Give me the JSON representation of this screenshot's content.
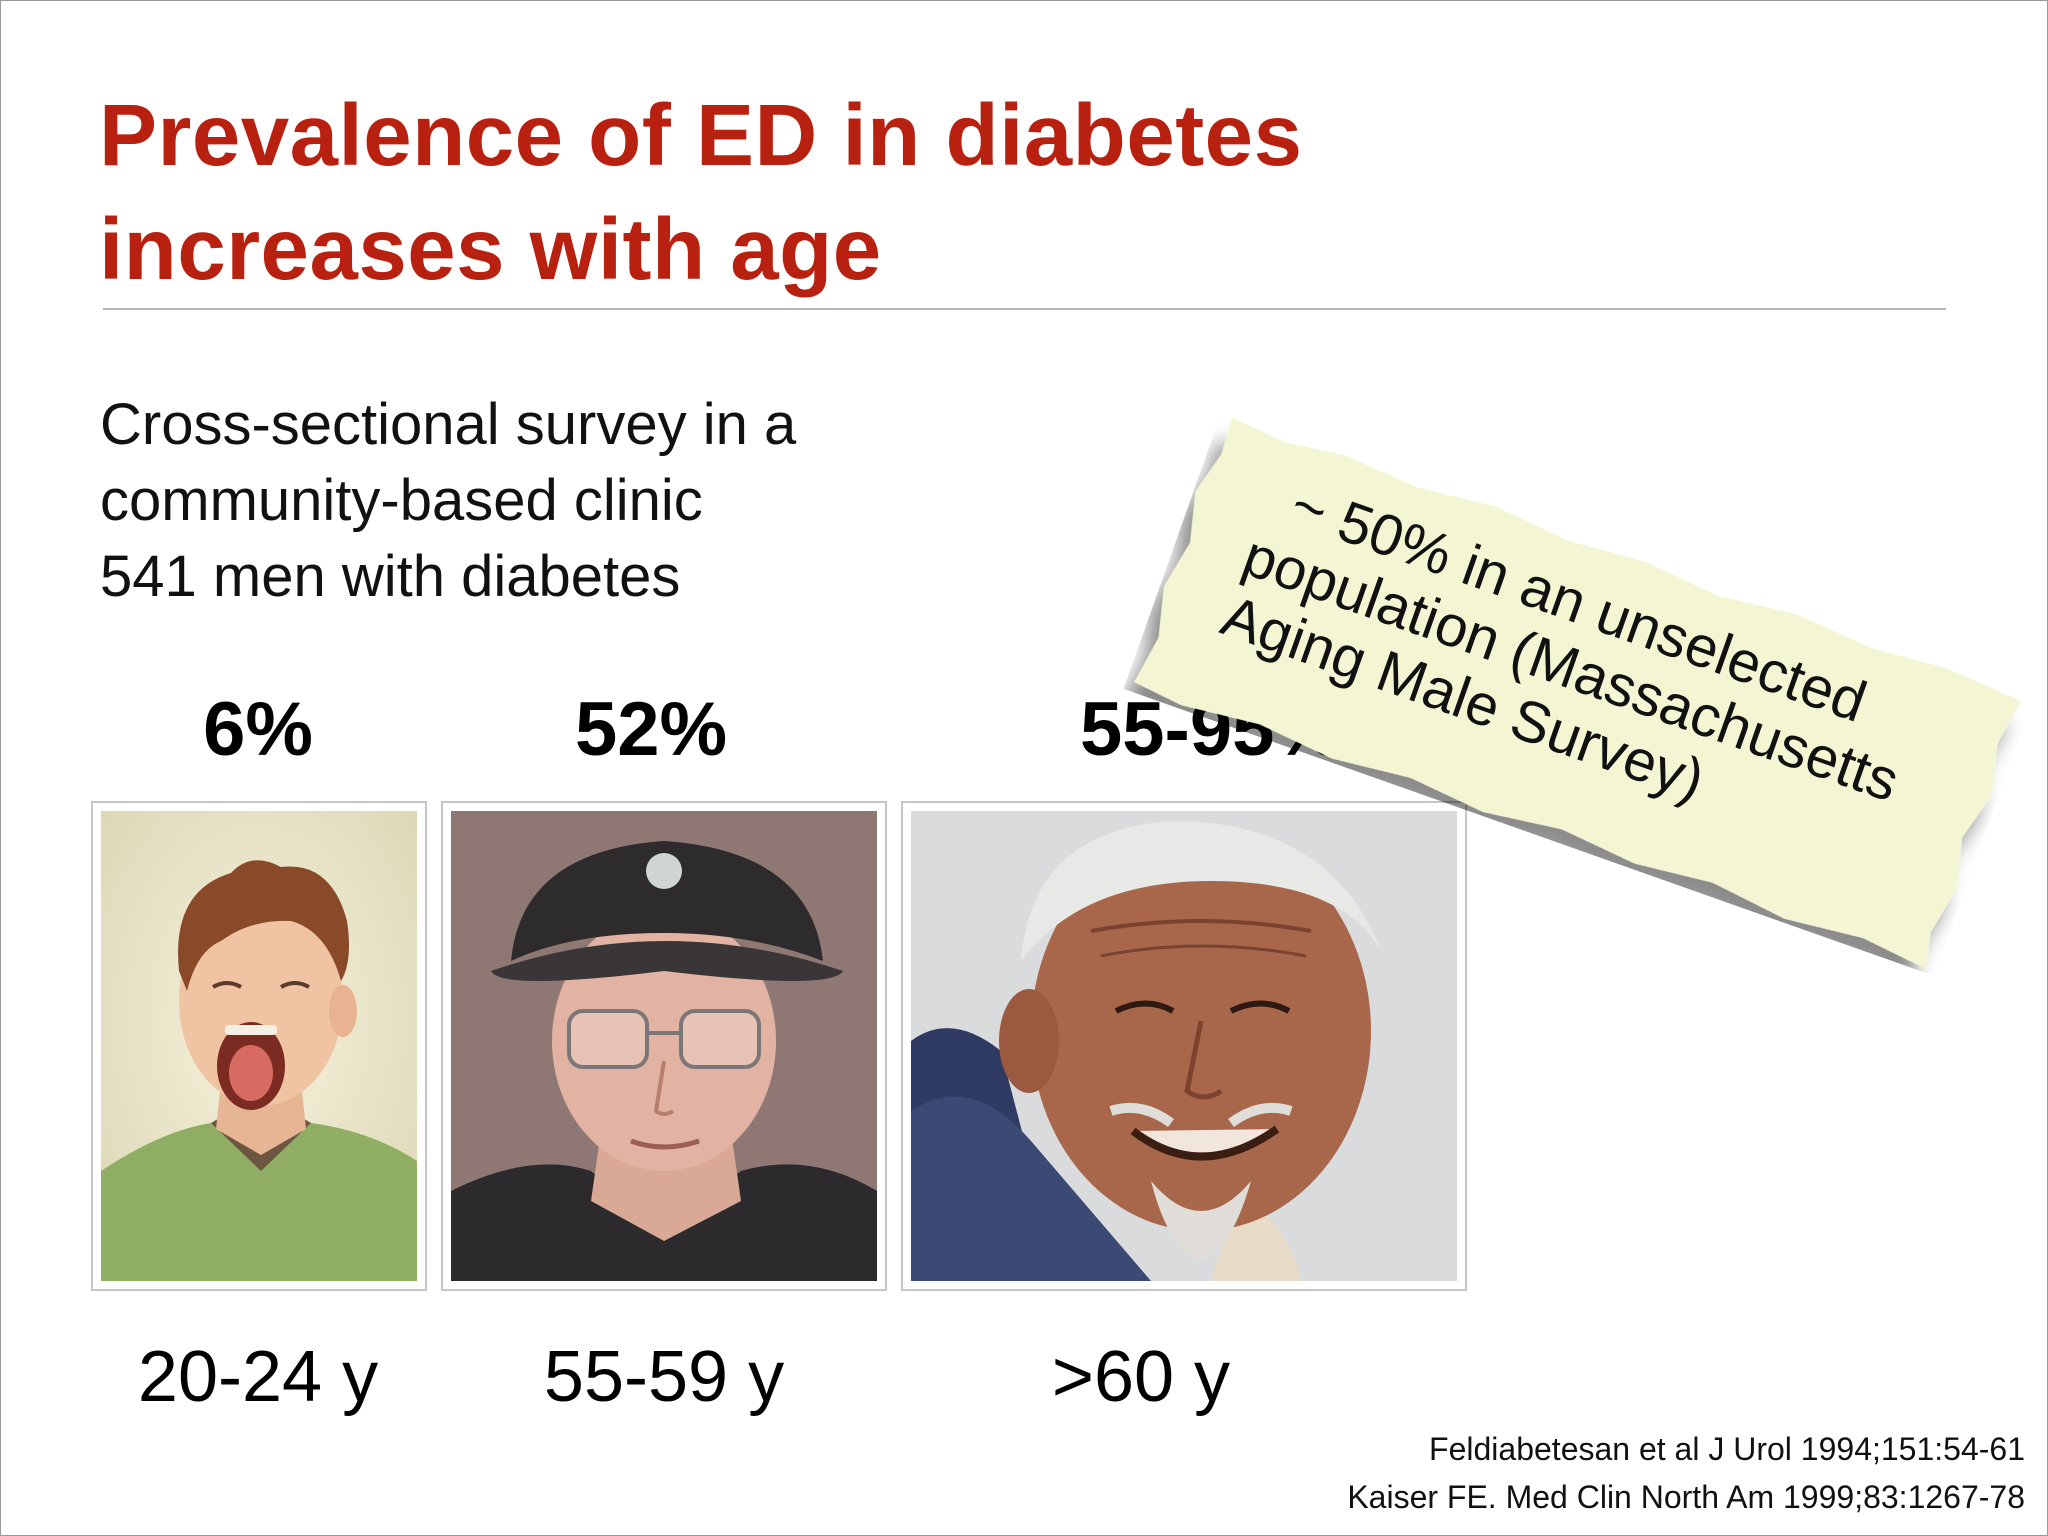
{
  "slide": {
    "title_lines": [
      "Prevalence of ED in diabetes",
      "increases with age"
    ],
    "description_lines": [
      "Cross-sectional survey in a",
      "community-based clinic",
      "541 men with diabetes"
    ],
    "groups": [
      {
        "percent": "6%",
        "age": "20-24 y"
      },
      {
        "percent": "52%",
        "age": "55-59 y"
      },
      {
        "percent": "55-95%",
        "age": ">60 y"
      }
    ],
    "note_lines": [
      "~ 50% in an unselected",
      "population (Massachusetts",
      "Aging Male Survey)"
    ],
    "references": [
      "Feldiabetesan et al J Urol 1994;151:54-61",
      "Kaiser FE. Med Clin North Am 1999;83:1267-78"
    ]
  },
  "colors": {
    "title": "#b8200f",
    "note_paper": "#f3f5d3",
    "divider": "#b5b5b5"
  }
}
